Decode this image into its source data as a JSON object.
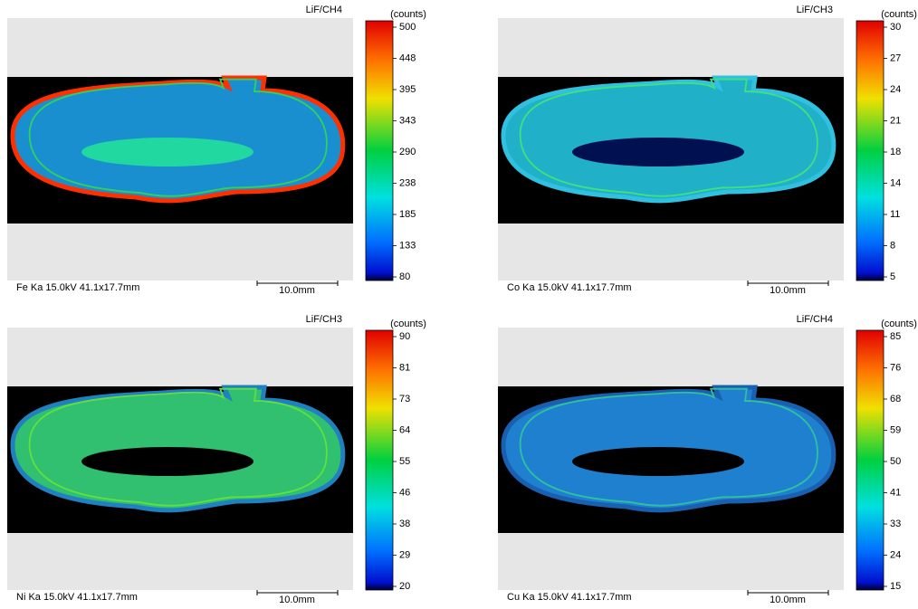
{
  "panels": [
    {
      "channel": "LiF/CH4",
      "unit": "(counts)",
      "scale_ticks": [
        500,
        448,
        395,
        343,
        290,
        238,
        185,
        133,
        80
      ],
      "caption": "Fe Ka 15.0kV 41.1x17.7mm",
      "scale_bar": "10.0mm"
    },
    {
      "channel": "LiF/CH3",
      "unit": "(counts)",
      "scale_ticks": [
        30,
        27,
        24,
        21,
        18,
        14,
        11,
        8,
        5
      ],
      "caption": "Co Ka 15.0kV 41.1x17.7mm",
      "scale_bar": "10.0mm"
    },
    {
      "channel": "LiF/CH3",
      "unit": "(counts)",
      "scale_ticks": [
        90,
        81,
        73,
        64,
        55,
        46,
        38,
        29,
        20
      ],
      "caption": "Ni Ka 15.0kV 41.1x17.7mm",
      "scale_bar": "10.0mm"
    },
    {
      "channel": "LiF/CH4",
      "unit": "(counts)",
      "scale_ticks": [
        85,
        76,
        68,
        59,
        50,
        41,
        33,
        24,
        15
      ],
      "caption": "Cu Ka 15.0kV 41.1x17.7mm",
      "scale_bar": "10.0mm"
    }
  ]
}
